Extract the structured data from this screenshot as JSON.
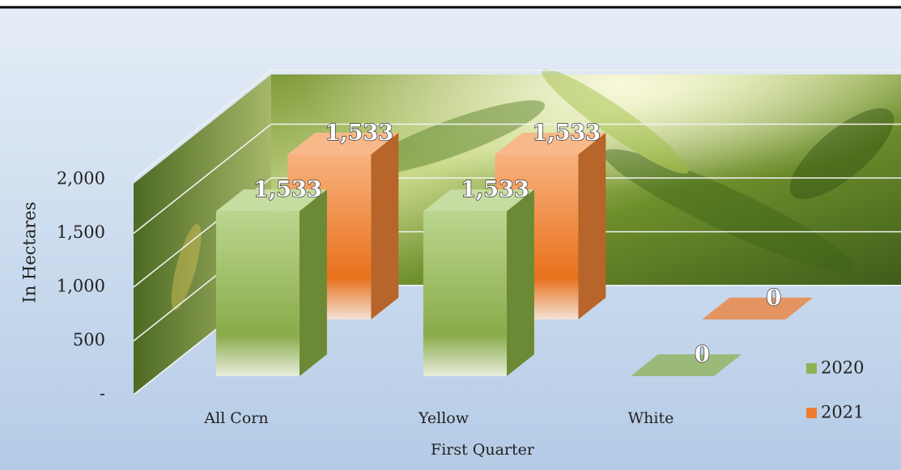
{
  "chart_data": {
    "type": "bar3d",
    "x_label": "First Quarter",
    "y_label": "In Hectares",
    "categories": [
      "All Corn",
      "Yellow",
      "White"
    ],
    "series": [
      {
        "name": "2020",
        "color": "#8fb253",
        "values": [
          1533,
          1533,
          0
        ],
        "value_labels": [
          "1,533",
          "1,533",
          "0"
        ]
      },
      {
        "name": "2021",
        "color": "#ed7d31",
        "values": [
          1533,
          1533,
          0
        ],
        "value_labels": [
          "1,533",
          "1,533",
          "0"
        ]
      }
    ],
    "ylim": [
      0,
      2000
    ],
    "yticks": [
      {
        "value": 0,
        "label": "-"
      },
      500,
      {
        "value": 1000,
        "label": "1,000"
      },
      {
        "value": 1500,
        "label": "1,500"
      },
      {
        "value": 2000,
        "label": "2,000"
      }
    ],
    "grid": true,
    "legend": "right"
  }
}
